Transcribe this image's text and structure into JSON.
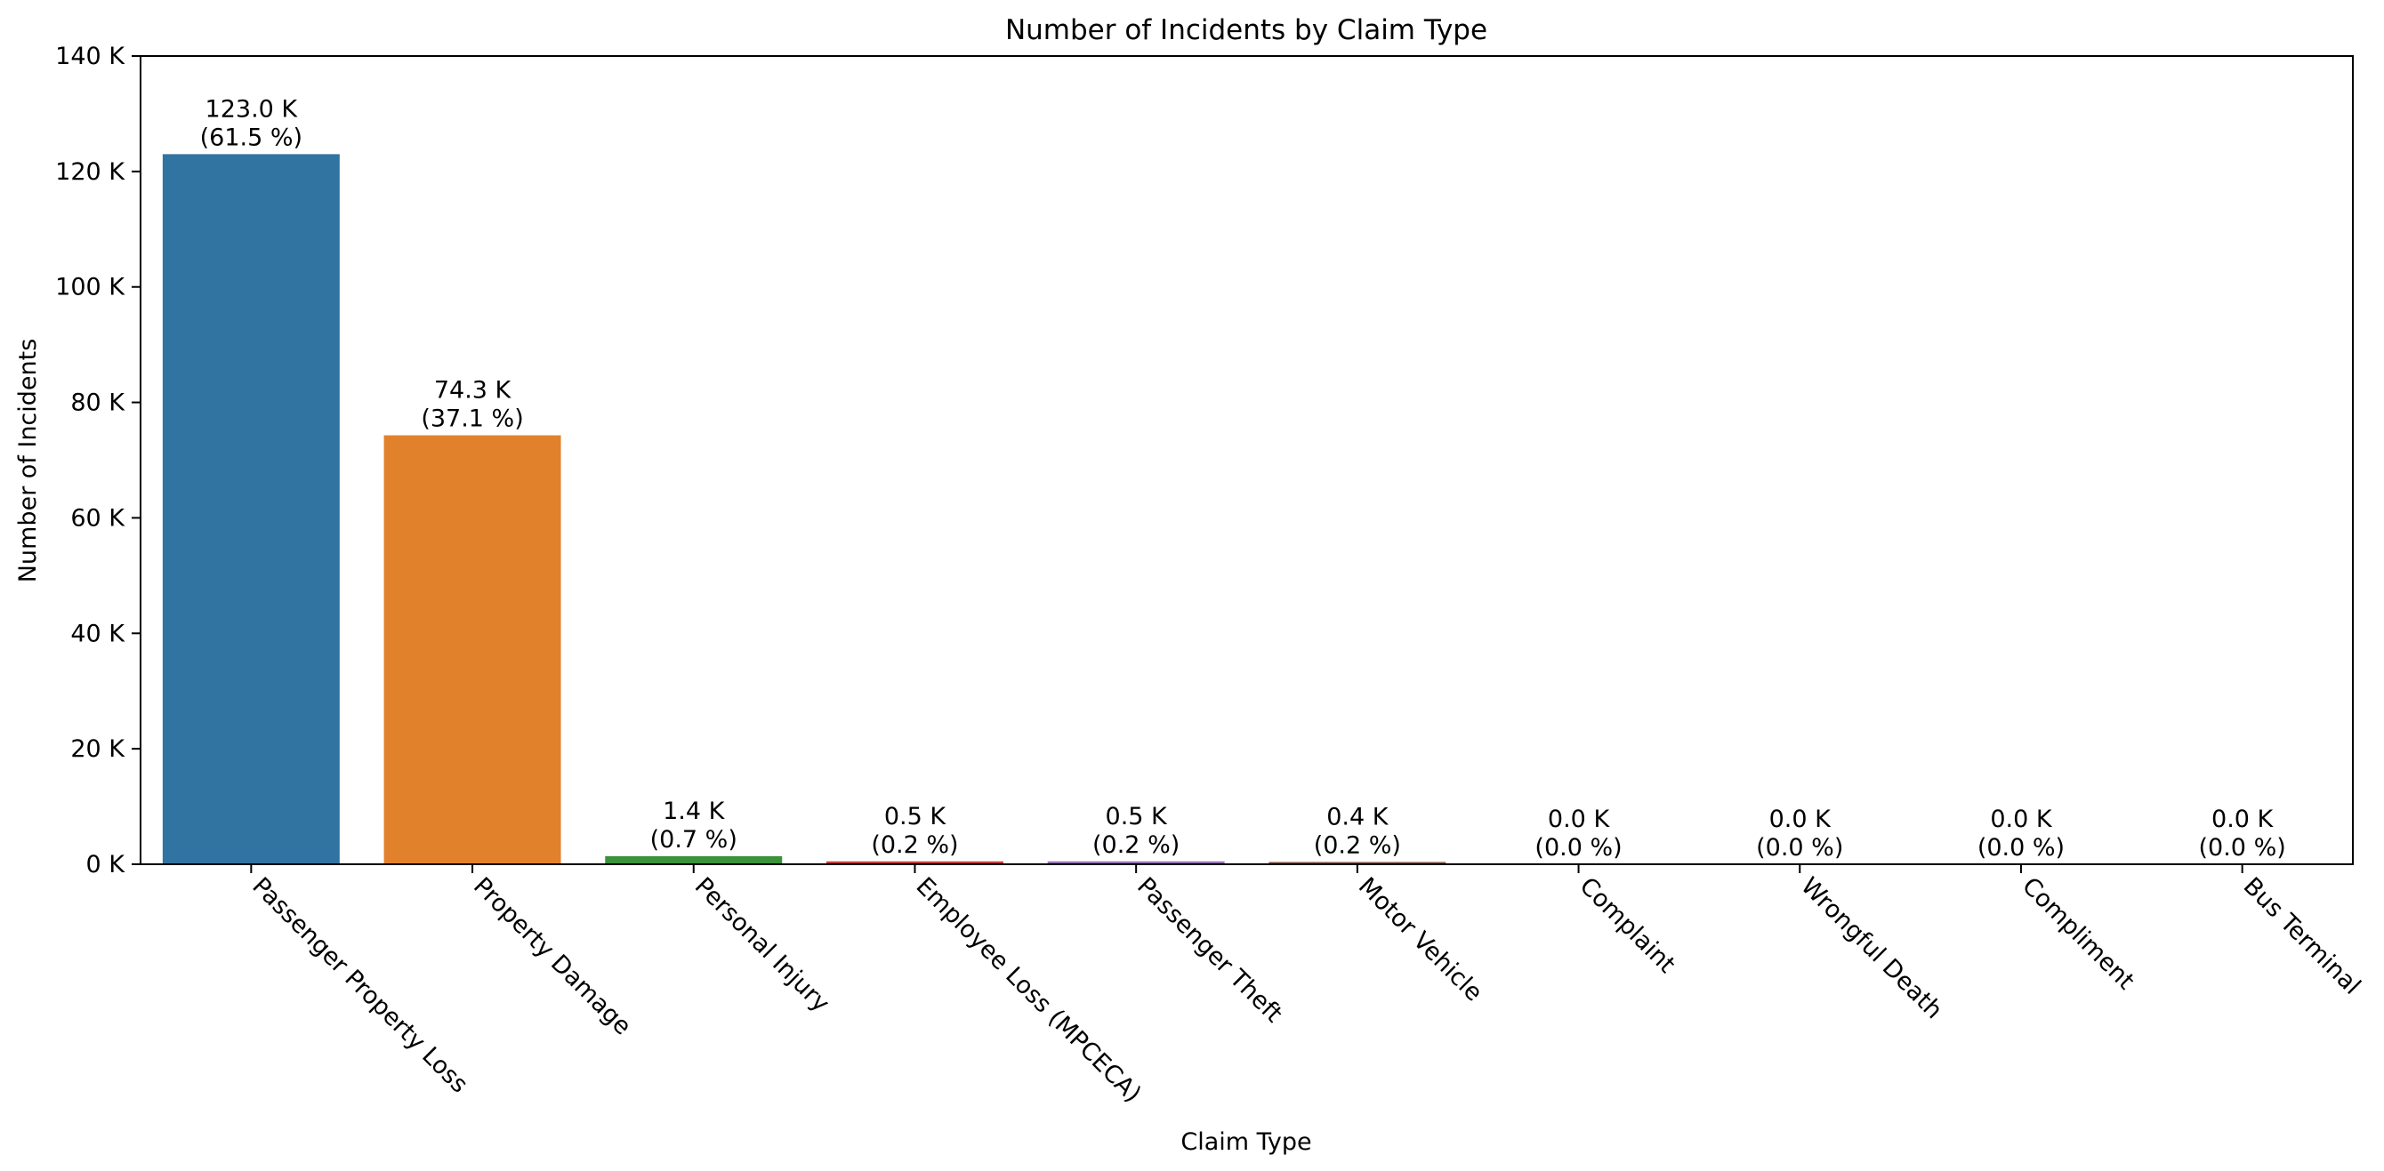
{
  "chart_data": {
    "type": "bar",
    "title": "Number of Incidents by Claim Type",
    "xlabel": "Claim Type",
    "ylabel": "Number of Incidents",
    "ylim": [
      0,
      140000
    ],
    "yticks": [
      0,
      20000,
      40000,
      60000,
      80000,
      100000,
      120000,
      140000
    ],
    "ytick_labels": [
      "0 K",
      "20 K",
      "40 K",
      "60 K",
      "80 K",
      "100 K",
      "120 K",
      "140 K"
    ],
    "grid": false,
    "legend": "none",
    "categories": [
      "Passenger Property Loss",
      "Property Damage",
      "Personal Injury",
      "Employee Loss (MPCECA)",
      "Passenger Theft",
      "Motor Vehicle",
      "Complaint",
      "Wrongful Death",
      "Compliment",
      "Bus Terminal"
    ],
    "values": [
      123000,
      74300,
      1400,
      500,
      500,
      400,
      20,
      10,
      5,
      5
    ],
    "value_labels": [
      "123.0 K",
      "74.3 K",
      "1.4 K",
      "0.5 K",
      "0.5 K",
      "0.4 K",
      "0.0 K",
      "0.0 K",
      "0.0 K",
      "0.0 K"
    ],
    "percent_labels": [
      "(61.5 %)",
      "(37.1 %)",
      "(0.7 %)",
      "(0.2 %)",
      "(0.2 %)",
      "(0.2 %)",
      "(0.0 %)",
      "(0.0 %)",
      "(0.0 %)",
      "(0.0 %)"
    ],
    "colors": [
      "#3274a1",
      "#e1812c",
      "#3a923a",
      "#c03d3e",
      "#9372b2",
      "#845b53",
      "#d684bd",
      "#7f7f7f",
      "#a9aa35",
      "#2ebece"
    ]
  }
}
